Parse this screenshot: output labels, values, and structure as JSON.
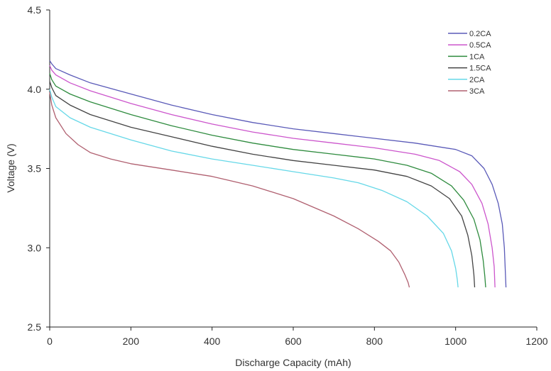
{
  "chart_data": {
    "type": "line",
    "title": "",
    "xlabel": "Discharge Capacity (mAh)",
    "ylabel": "Voltage (V)",
    "xlim": [
      0,
      1200
    ],
    "ylim": [
      2.5,
      4.5
    ],
    "x_ticks": [
      "0",
      "200",
      "400",
      "600",
      "800",
      "1000",
      "1200"
    ],
    "y_ticks": [
      "2.5",
      "3.0",
      "3.5",
      "4.0",
      "4.5"
    ],
    "grid": false,
    "legend_position": "top-right",
    "series": [
      {
        "name": "0.2CA",
        "color": "#5a5ab8",
        "points": [
          [
            0,
            4.18
          ],
          [
            5,
            4.16
          ],
          [
            15,
            4.13
          ],
          [
            50,
            4.09
          ],
          [
            100,
            4.04
          ],
          [
            200,
            3.97
          ],
          [
            300,
            3.9
          ],
          [
            400,
            3.84
          ],
          [
            500,
            3.79
          ],
          [
            600,
            3.75
          ],
          [
            700,
            3.72
          ],
          [
            800,
            3.69
          ],
          [
            900,
            3.66
          ],
          [
            1000,
            3.62
          ],
          [
            1040,
            3.58
          ],
          [
            1070,
            3.5
          ],
          [
            1090,
            3.4
          ],
          [
            1105,
            3.28
          ],
          [
            1115,
            3.15
          ],
          [
            1120,
            3.0
          ],
          [
            1122,
            2.88
          ],
          [
            1124,
            2.75
          ]
        ]
      },
      {
        "name": "0.5CA",
        "color": "#cc55cc",
        "points": [
          [
            0,
            4.15
          ],
          [
            5,
            4.12
          ],
          [
            15,
            4.09
          ],
          [
            50,
            4.04
          ],
          [
            100,
            3.99
          ],
          [
            200,
            3.91
          ],
          [
            300,
            3.84
          ],
          [
            400,
            3.78
          ],
          [
            500,
            3.73
          ],
          [
            600,
            3.69
          ],
          [
            700,
            3.66
          ],
          [
            800,
            3.63
          ],
          [
            900,
            3.59
          ],
          [
            960,
            3.55
          ],
          [
            1010,
            3.48
          ],
          [
            1040,
            3.4
          ],
          [
            1065,
            3.28
          ],
          [
            1080,
            3.15
          ],
          [
            1090,
            3.0
          ],
          [
            1095,
            2.88
          ],
          [
            1097,
            2.75
          ]
        ]
      },
      {
        "name": "1CA",
        "color": "#2e8b3e",
        "points": [
          [
            0,
            4.1
          ],
          [
            5,
            4.06
          ],
          [
            15,
            4.02
          ],
          [
            50,
            3.97
          ],
          [
            100,
            3.92
          ],
          [
            200,
            3.84
          ],
          [
            300,
            3.77
          ],
          [
            400,
            3.71
          ],
          [
            500,
            3.66
          ],
          [
            600,
            3.62
          ],
          [
            700,
            3.59
          ],
          [
            800,
            3.56
          ],
          [
            880,
            3.52
          ],
          [
            940,
            3.47
          ],
          [
            990,
            3.39
          ],
          [
            1020,
            3.3
          ],
          [
            1045,
            3.18
          ],
          [
            1060,
            3.05
          ],
          [
            1068,
            2.92
          ],
          [
            1072,
            2.82
          ],
          [
            1074,
            2.75
          ]
        ]
      },
      {
        "name": "1.5CA",
        "color": "#444444",
        "points": [
          [
            0,
            4.05
          ],
          [
            5,
            4.01
          ],
          [
            15,
            3.96
          ],
          [
            50,
            3.9
          ],
          [
            100,
            3.84
          ],
          [
            200,
            3.76
          ],
          [
            300,
            3.7
          ],
          [
            400,
            3.64
          ],
          [
            500,
            3.59
          ],
          [
            600,
            3.55
          ],
          [
            700,
            3.52
          ],
          [
            800,
            3.49
          ],
          [
            880,
            3.45
          ],
          [
            940,
            3.39
          ],
          [
            985,
            3.31
          ],
          [
            1015,
            3.2
          ],
          [
            1030,
            3.08
          ],
          [
            1040,
            2.95
          ],
          [
            1045,
            2.83
          ],
          [
            1047,
            2.75
          ]
        ]
      },
      {
        "name": "2CA",
        "color": "#66d8e8",
        "points": [
          [
            0,
            4.0
          ],
          [
            5,
            3.95
          ],
          [
            15,
            3.89
          ],
          [
            50,
            3.82
          ],
          [
            100,
            3.76
          ],
          [
            200,
            3.68
          ],
          [
            300,
            3.61
          ],
          [
            400,
            3.56
          ],
          [
            500,
            3.52
          ],
          [
            600,
            3.48
          ],
          [
            700,
            3.44
          ],
          [
            760,
            3.41
          ],
          [
            820,
            3.36
          ],
          [
            880,
            3.29
          ],
          [
            930,
            3.2
          ],
          [
            970,
            3.09
          ],
          [
            990,
            2.98
          ],
          [
            1000,
            2.87
          ],
          [
            1004,
            2.8
          ],
          [
            1006,
            2.75
          ]
        ]
      },
      {
        "name": "3CA",
        "color": "#b06070",
        "points": [
          [
            0,
            3.98
          ],
          [
            5,
            3.9
          ],
          [
            15,
            3.82
          ],
          [
            40,
            3.72
          ],
          [
            70,
            3.65
          ],
          [
            100,
            3.6
          ],
          [
            150,
            3.56
          ],
          [
            200,
            3.53
          ],
          [
            300,
            3.49
          ],
          [
            400,
            3.45
          ],
          [
            500,
            3.39
          ],
          [
            600,
            3.31
          ],
          [
            700,
            3.2
          ],
          [
            760,
            3.12
          ],
          [
            810,
            3.04
          ],
          [
            840,
            2.98
          ],
          [
            860,
            2.91
          ],
          [
            875,
            2.83
          ],
          [
            883,
            2.78
          ],
          [
            886,
            2.75
          ]
        ]
      }
    ]
  }
}
